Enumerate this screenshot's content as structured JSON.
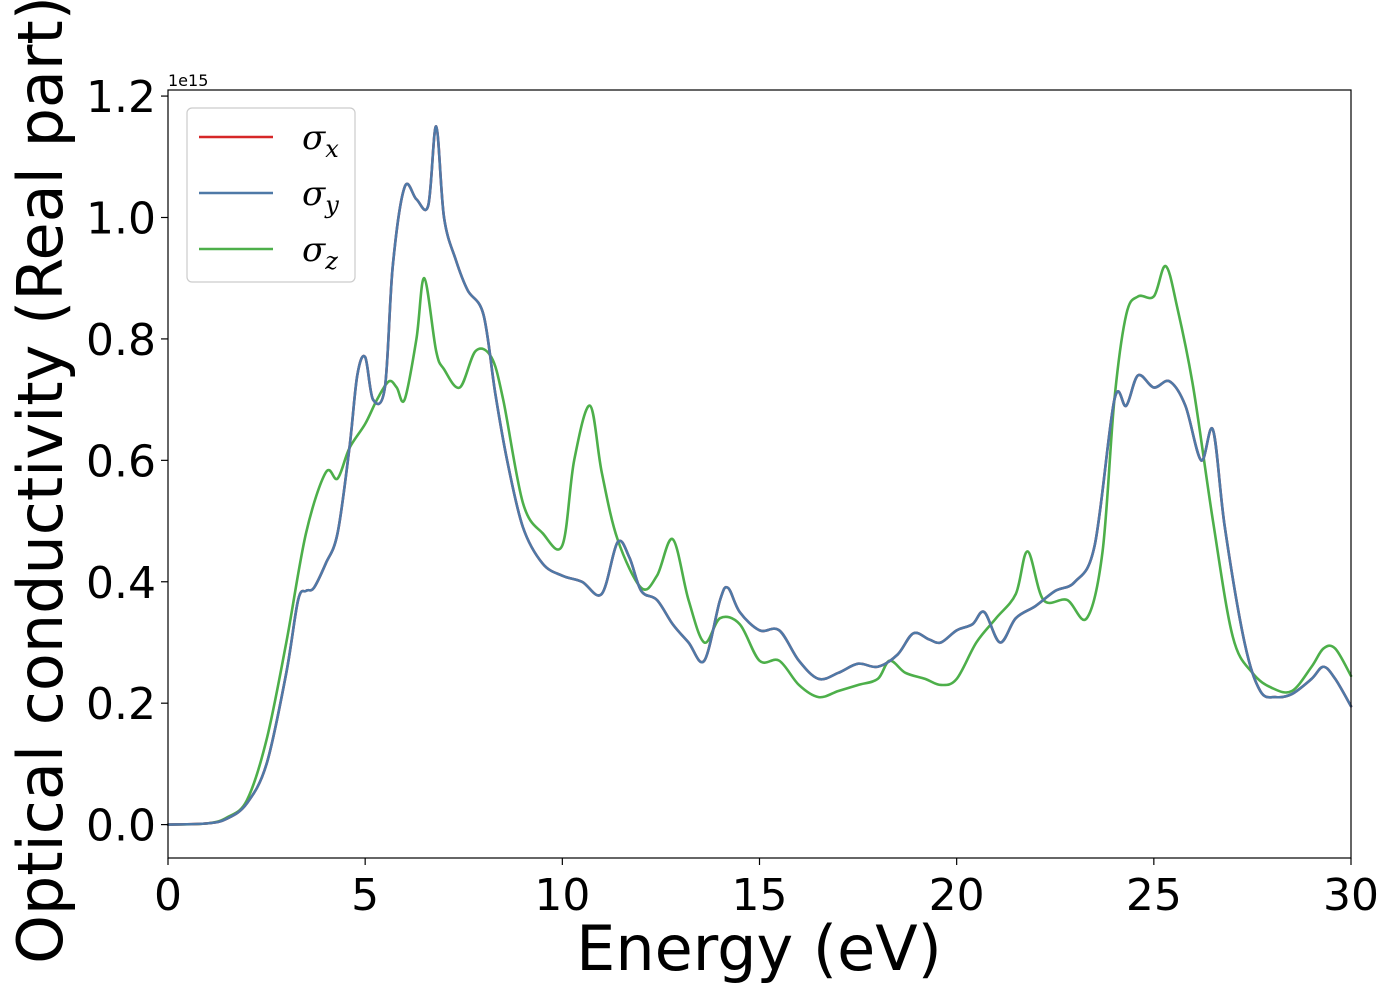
{
  "chart_data": {
    "type": "line",
    "title": "",
    "xlabel": "Energy (eV)",
    "ylabel": "Optical conductivity (Real part)",
    "y_offset_label": "1e15",
    "xlim": [
      0,
      30
    ],
    "ylim": [
      -0.055,
      1.21
    ],
    "xticks": [
      0,
      5,
      10,
      15,
      20,
      25,
      30
    ],
    "xtick_labels": [
      "0",
      "5",
      "10",
      "15",
      "20",
      "25",
      "30"
    ],
    "yticks": [
      0.0,
      0.2,
      0.4,
      0.6,
      0.8,
      1.0,
      1.2
    ],
    "ytick_labels": [
      "0.0",
      "0.2",
      "0.4",
      "0.6",
      "0.8",
      "1.0",
      "1.2"
    ],
    "grid": false,
    "legend_position": "top-left",
    "series": [
      {
        "name": "σx",
        "symbol": "σ",
        "subscript": "x",
        "color": "#d62728",
        "x": [
          0,
          1,
          1.5,
          2,
          2.5,
          3,
          3.3,
          3.5,
          3.7,
          4,
          4.3,
          4.6,
          4.8,
          5,
          5.2,
          5.5,
          5.7,
          6,
          6.3,
          6.6,
          6.8,
          7,
          7.3,
          7.6,
          8,
          8.3,
          8.6,
          9,
          9.5,
          10,
          10.5,
          11,
          11.4,
          11.7,
          12,
          12.4,
          12.8,
          13.2,
          13.6,
          14,
          14.2,
          14.5,
          15,
          15.5,
          16,
          16.5,
          17,
          17.5,
          18,
          18.5,
          18.9,
          19.3,
          19.6,
          20,
          20.4,
          20.7,
          21.1,
          21.5,
          22,
          22.5,
          23,
          23.5,
          24,
          24.3,
          24.6,
          25,
          25.4,
          25.8,
          26.2,
          26.5,
          26.8,
          27.3,
          27.7,
          28.1,
          28.5,
          29,
          29.3,
          29.6,
          30
        ],
        "y": [
          0,
          0.002,
          0.01,
          0.035,
          0.1,
          0.25,
          0.37,
          0.385,
          0.39,
          0.43,
          0.48,
          0.62,
          0.74,
          0.77,
          0.7,
          0.72,
          0.92,
          1.05,
          1.03,
          1.02,
          1.15,
          1.0,
          0.93,
          0.88,
          0.84,
          0.71,
          0.6,
          0.49,
          0.43,
          0.41,
          0.4,
          0.38,
          0.465,
          0.44,
          0.385,
          0.37,
          0.33,
          0.3,
          0.27,
          0.37,
          0.39,
          0.35,
          0.32,
          0.32,
          0.27,
          0.24,
          0.25,
          0.265,
          0.26,
          0.28,
          0.315,
          0.305,
          0.3,
          0.32,
          0.33,
          0.35,
          0.3,
          0.34,
          0.36,
          0.385,
          0.4,
          0.46,
          0.7,
          0.69,
          0.74,
          0.72,
          0.73,
          0.69,
          0.6,
          0.65,
          0.49,
          0.3,
          0.22,
          0.21,
          0.215,
          0.24,
          0.26,
          0.24,
          0.195
        ]
      },
      {
        "name": "σy",
        "symbol": "σ",
        "subscript": "y",
        "color": "#4e79a7",
        "x": [
          0,
          1,
          1.5,
          2,
          2.5,
          3,
          3.3,
          3.5,
          3.7,
          4,
          4.3,
          4.6,
          4.8,
          5,
          5.2,
          5.5,
          5.7,
          6,
          6.3,
          6.6,
          6.8,
          7,
          7.3,
          7.6,
          8,
          8.3,
          8.6,
          9,
          9.5,
          10,
          10.5,
          11,
          11.4,
          11.7,
          12,
          12.4,
          12.8,
          13.2,
          13.6,
          14,
          14.2,
          14.5,
          15,
          15.5,
          16,
          16.5,
          17,
          17.5,
          18,
          18.5,
          18.9,
          19.3,
          19.6,
          20,
          20.4,
          20.7,
          21.1,
          21.5,
          22,
          22.5,
          23,
          23.5,
          24,
          24.3,
          24.6,
          25,
          25.4,
          25.8,
          26.2,
          26.5,
          26.8,
          27.3,
          27.7,
          28.1,
          28.5,
          29,
          29.3,
          29.6,
          30
        ],
        "y": [
          0,
          0.002,
          0.01,
          0.035,
          0.1,
          0.25,
          0.37,
          0.385,
          0.39,
          0.43,
          0.48,
          0.62,
          0.74,
          0.77,
          0.7,
          0.72,
          0.92,
          1.05,
          1.03,
          1.02,
          1.15,
          1.0,
          0.93,
          0.88,
          0.84,
          0.71,
          0.6,
          0.49,
          0.43,
          0.41,
          0.4,
          0.38,
          0.465,
          0.44,
          0.385,
          0.37,
          0.33,
          0.3,
          0.27,
          0.37,
          0.39,
          0.35,
          0.32,
          0.32,
          0.27,
          0.24,
          0.25,
          0.265,
          0.26,
          0.28,
          0.315,
          0.305,
          0.3,
          0.32,
          0.33,
          0.35,
          0.3,
          0.34,
          0.36,
          0.385,
          0.4,
          0.46,
          0.7,
          0.69,
          0.74,
          0.72,
          0.73,
          0.69,
          0.6,
          0.65,
          0.49,
          0.3,
          0.22,
          0.21,
          0.215,
          0.24,
          0.26,
          0.24,
          0.195
        ]
      },
      {
        "name": "σz",
        "symbol": "σ",
        "subscript": "z",
        "color": "#4daf4a",
        "x": [
          0,
          1,
          1.5,
          2,
          2.5,
          3,
          3.5,
          4,
          4.3,
          4.6,
          5,
          5.3,
          5.6,
          5.8,
          6,
          6.3,
          6.5,
          6.8,
          7,
          7.4,
          7.8,
          8.2,
          8.5,
          9,
          9.5,
          10,
          10.3,
          10.7,
          11,
          11.4,
          12,
          12.4,
          12.8,
          13.2,
          13.6,
          14,
          14.5,
          15,
          15.5,
          16,
          16.5,
          17,
          17.5,
          18,
          18.3,
          18.7,
          19.2,
          19.6,
          20,
          20.5,
          21,
          21.5,
          21.8,
          22.2,
          22.8,
          23.3,
          23.7,
          24,
          24.3,
          24.6,
          25,
          25.3,
          25.6,
          26,
          26.5,
          27,
          27.5,
          28,
          28.5,
          29,
          29.3,
          29.6,
          30
        ],
        "y": [
          0,
          0.002,
          0.012,
          0.04,
          0.14,
          0.3,
          0.48,
          0.58,
          0.57,
          0.62,
          0.66,
          0.7,
          0.73,
          0.72,
          0.7,
          0.8,
          0.9,
          0.78,
          0.75,
          0.72,
          0.78,
          0.77,
          0.7,
          0.53,
          0.48,
          0.46,
          0.6,
          0.69,
          0.58,
          0.47,
          0.39,
          0.41,
          0.47,
          0.37,
          0.3,
          0.34,
          0.33,
          0.27,
          0.27,
          0.23,
          0.21,
          0.22,
          0.23,
          0.24,
          0.27,
          0.25,
          0.24,
          0.23,
          0.24,
          0.3,
          0.34,
          0.38,
          0.45,
          0.37,
          0.37,
          0.34,
          0.45,
          0.7,
          0.84,
          0.87,
          0.87,
          0.92,
          0.85,
          0.72,
          0.5,
          0.31,
          0.25,
          0.225,
          0.22,
          0.26,
          0.29,
          0.29,
          0.245
        ]
      }
    ]
  }
}
